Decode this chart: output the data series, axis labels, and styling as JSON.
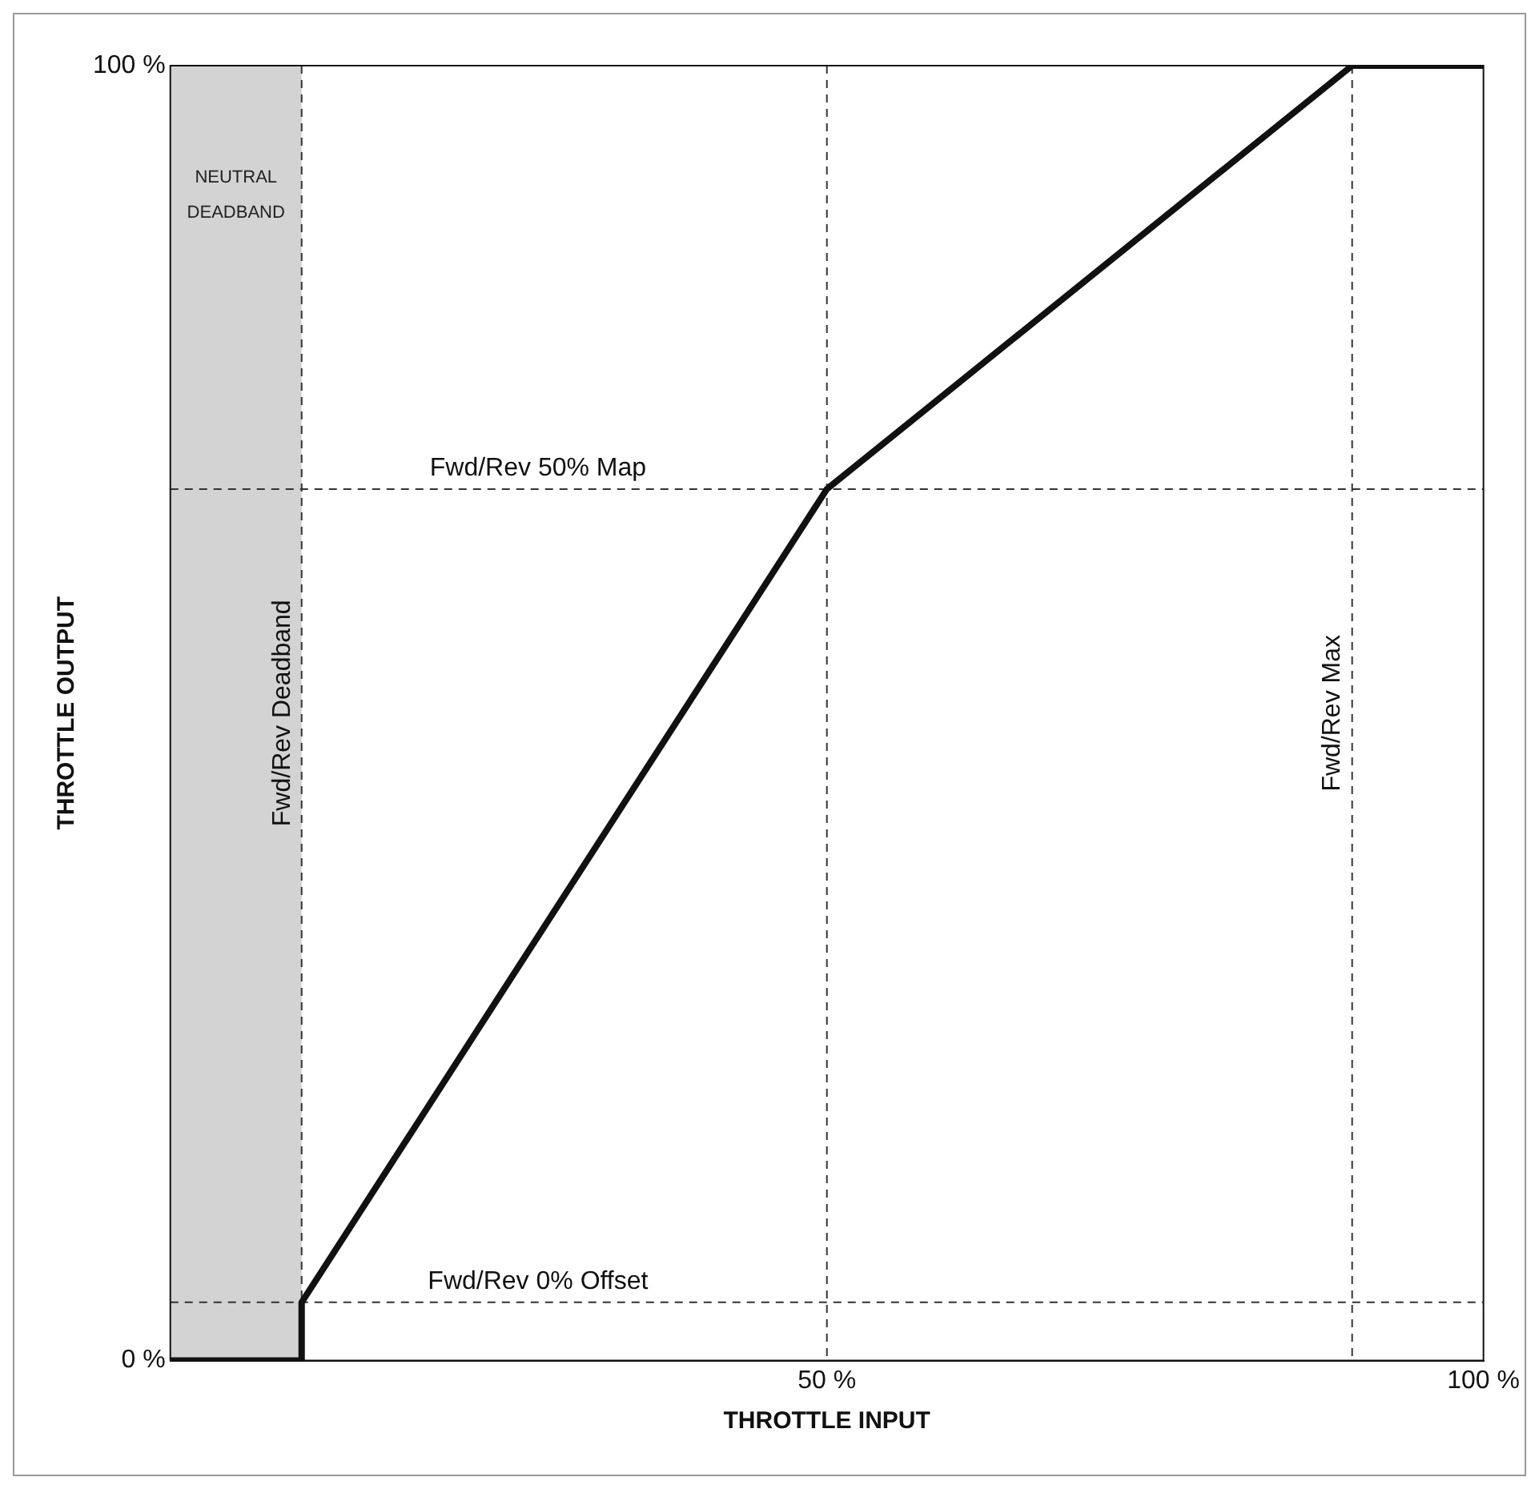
{
  "chart_data": {
    "type": "line",
    "xlabel": "THROTTLE INPUT",
    "ylabel": "THROTTLE OUTPUT",
    "series": [
      {
        "color": "#111111",
        "x": [
          0,
          10,
          10,
          50,
          90,
          100
        ],
        "values": [
          0,
          0,
          4.5,
          67.3,
          100,
          100
        ]
      }
    ],
    "xlim": [
      0,
      100
    ],
    "ylim": [
      0,
      100
    ],
    "xticks": [
      {
        "value": 0,
        "label": null
      },
      {
        "value": 50,
        "label": "50 %"
      },
      {
        "value": 100,
        "label": "100 %"
      }
    ],
    "yticks": [
      {
        "value": 0,
        "label": "0 %"
      },
      {
        "value": 100,
        "label": "100 %"
      }
    ],
    "grid": false,
    "legend": false,
    "marker": "none",
    "line_style": "solid",
    "bands": [
      {
        "axis": "x",
        "from": 0,
        "to": 10,
        "label": "NEUTRAL DEADBAND",
        "color": "#d3d3d3"
      }
    ],
    "ref_lines": [
      {
        "axis": "x",
        "value": 10,
        "label": "Fwd/Rev Deadband",
        "line_style": "dashed"
      },
      {
        "axis": "x",
        "value": 50,
        "label": null,
        "line_style": "dashed"
      },
      {
        "axis": "x",
        "value": 90,
        "label": "Fwd/Rev Max",
        "line_style": "dashed"
      },
      {
        "axis": "y",
        "value": 67.3,
        "label": "Fwd/Rev 50% Map",
        "line_style": "dashed"
      },
      {
        "axis": "y",
        "value": 4.5,
        "label": "Fwd/Rev 0% Offset",
        "line_style": "dashed"
      }
    ]
  }
}
